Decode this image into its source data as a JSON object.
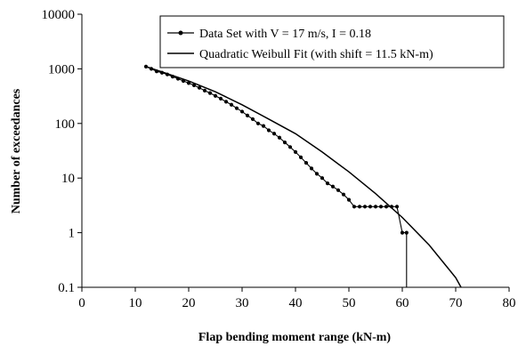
{
  "chart_data": {
    "type": "line",
    "title": "",
    "xlabel": "Flap bending moment range (kN-m)",
    "ylabel": "Number of exceedances",
    "xlim": [
      0,
      80
    ],
    "ylim": [
      0.1,
      10000
    ],
    "yscale": "log",
    "grid": false,
    "legend_position": "top-right",
    "x_ticks": [
      "0",
      "10",
      "20",
      "30",
      "40",
      "50",
      "60",
      "70",
      "80"
    ],
    "y_ticks": [
      "0.1",
      "1",
      "10",
      "100",
      "1000",
      "10000"
    ],
    "series": [
      {
        "name": "Data Set with V = 17 m/s, I = 0.18",
        "style": "line-markers",
        "color": "#000000",
        "x": [
          12,
          13,
          14,
          15,
          16,
          17,
          18,
          19,
          20,
          21,
          22,
          23,
          24,
          25,
          26,
          27,
          28,
          29,
          30,
          31,
          32,
          33,
          34,
          35,
          36,
          37,
          38,
          39,
          40,
          41,
          42,
          43,
          44,
          45,
          46,
          47,
          48,
          49,
          50,
          51,
          52,
          53,
          54,
          55,
          56,
          57,
          58,
          59,
          60,
          60.8,
          60.8
        ],
        "y": [
          1100,
          1000,
          900,
          850,
          790,
          720,
          660,
          600,
          550,
          500,
          450,
          400,
          360,
          320,
          285,
          250,
          220,
          190,
          165,
          140,
          120,
          100,
          90,
          75,
          65,
          55,
          45,
          37,
          30,
          24,
          19,
          15,
          12,
          10,
          8,
          7,
          6,
          5,
          4,
          3,
          3,
          3,
          3,
          3,
          3,
          3,
          3,
          3,
          1,
          1,
          0.1
        ]
      },
      {
        "name": "Quadratic Weibull Fit (with shift = 11.5 kN-m)",
        "style": "line",
        "color": "#000000",
        "x": [
          12,
          15,
          20,
          25,
          30,
          35,
          40,
          45,
          50,
          55,
          60,
          65,
          70,
          71
        ],
        "y": [
          1100,
          880,
          600,
          380,
          220,
          120,
          65,
          30,
          13,
          5.2,
          1.9,
          0.6,
          0.15,
          0.1
        ]
      }
    ]
  }
}
